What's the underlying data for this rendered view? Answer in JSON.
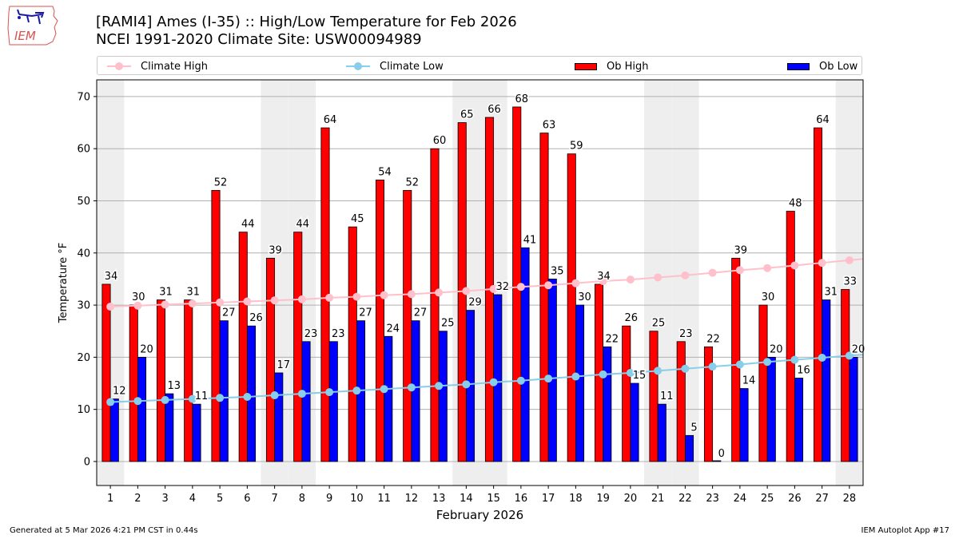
{
  "header": {
    "title_line1": "[RAMI4] Ames (I-35) :: High/Low Temperature for Feb 2026",
    "title_line2": "NCEI 1991-2020 Climate Site: USW00094989",
    "logo_text": "IEM"
  },
  "legend": {
    "items": [
      {
        "label": "Climate High",
        "kind": "line",
        "color": "#ffc0cb"
      },
      {
        "label": "Climate Low",
        "kind": "line",
        "color": "#87ceeb"
      },
      {
        "label": "Ob High",
        "kind": "bar",
        "color": "#ff0000"
      },
      {
        "label": "Ob Low",
        "kind": "bar",
        "color": "#0000ff"
      }
    ]
  },
  "footer": {
    "generated": "Generated at 5 Mar 2026 4:21 PM CST in 0.44s",
    "app": "IEM Autoplot App #17"
  },
  "chart_data": {
    "type": "bar",
    "title": "[RAMI4] Ames (I-35) :: High/Low Temperature for Feb 2026",
    "subtitle": "NCEI 1991-2020 Climate Site: USW00094989",
    "xlabel": "February 2026",
    "ylabel": "Temperature °F",
    "xlim": [
      0.5,
      28.5
    ],
    "ylim": [
      -4.6,
      73.2
    ],
    "yticks": [
      0,
      10,
      20,
      30,
      40,
      50,
      60,
      70
    ],
    "grid": "y",
    "legend_position": "top",
    "weekend_days": [
      1,
      7,
      8,
      14,
      15,
      21,
      22,
      28
    ],
    "categories": [
      1,
      2,
      3,
      4,
      5,
      6,
      7,
      8,
      9,
      10,
      11,
      12,
      13,
      14,
      15,
      16,
      17,
      18,
      19,
      20,
      21,
      22,
      23,
      24,
      25,
      26,
      27,
      28
    ],
    "series": [
      {
        "name": "Ob High",
        "kind": "bar",
        "color": "#ff0000",
        "values": [
          34,
          30,
          31,
          31,
          52,
          44,
          39,
          44,
          64,
          45,
          54,
          52,
          60,
          65,
          66,
          68,
          63,
          59,
          34,
          26,
          25,
          23,
          22,
          39,
          30,
          48,
          64,
          33
        ]
      },
      {
        "name": "Ob Low",
        "kind": "bar",
        "color": "#0000ff",
        "values": [
          12,
          20,
          13,
          11,
          27,
          26,
          17,
          23,
          23,
          27,
          24,
          27,
          25,
          29,
          32,
          41,
          35,
          30,
          22,
          15,
          11,
          5,
          0,
          14,
          20,
          16,
          31,
          20
        ]
      },
      {
        "name": "Climate High",
        "kind": "line",
        "color": "#ffc0cb",
        "values": [
          29.7,
          29.9,
          30.1,
          30.3,
          30.5,
          30.7,
          30.9,
          31.1,
          31.4,
          31.6,
          31.9,
          32.1,
          32.4,
          32.7,
          33.1,
          33.5,
          33.8,
          34.2,
          34.6,
          34.9,
          35.3,
          35.7,
          36.2,
          36.7,
          37.1,
          37.6,
          38.1,
          38.6
        ]
      },
      {
        "name": "Climate Low",
        "kind": "line",
        "color": "#87ceeb",
        "values": [
          11.4,
          11.6,
          11.8,
          12.0,
          12.2,
          12.4,
          12.7,
          13.0,
          13.3,
          13.6,
          13.9,
          14.2,
          14.5,
          14.8,
          15.2,
          15.5,
          15.9,
          16.3,
          16.7,
          17.0,
          17.4,
          17.8,
          18.2,
          18.6,
          19.1,
          19.5,
          19.9,
          20.3
        ]
      }
    ]
  }
}
